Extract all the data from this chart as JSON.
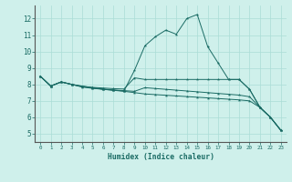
{
  "xlabel": "Humidex (Indice chaleur)",
  "xlim": [
    -0.5,
    23.5
  ],
  "ylim": [
    4.5,
    12.8
  ],
  "yticks": [
    5,
    6,
    7,
    8,
    9,
    10,
    11,
    12
  ],
  "xticks": [
    0,
    1,
    2,
    3,
    4,
    5,
    6,
    7,
    8,
    9,
    10,
    11,
    12,
    13,
    14,
    15,
    16,
    17,
    18,
    19,
    20,
    21,
    22,
    23
  ],
  "bg_color": "#cff0eb",
  "grid_color": "#aaddd6",
  "line_color": "#1a6b64",
  "lines": [
    {
      "x": [
        0,
        1,
        2,
        3,
        4,
        5,
        6,
        7,
        8,
        9,
        10,
        11,
        12,
        13,
        14,
        15,
        16,
        17,
        18,
        19,
        20,
        21,
        22,
        23
      ],
      "y": [
        8.5,
        7.9,
        8.15,
        8.0,
        7.9,
        7.8,
        7.7,
        7.65,
        7.6,
        8.85,
        10.35,
        10.9,
        11.3,
        11.05,
        12.0,
        12.25,
        10.3,
        9.3,
        8.3,
        8.3,
        7.7,
        6.6,
        6.0,
        5.2
      ]
    },
    {
      "x": [
        0,
        1,
        2,
        3,
        4,
        5,
        6,
        7,
        8,
        9,
        10,
        11,
        12,
        13,
        14,
        15,
        16,
        17,
        18,
        19,
        20,
        21,
        22,
        23
      ],
      "y": [
        8.5,
        7.9,
        8.15,
        8.0,
        7.88,
        7.82,
        7.78,
        7.74,
        7.72,
        8.4,
        8.3,
        8.3,
        8.3,
        8.3,
        8.3,
        8.3,
        8.3,
        8.3,
        8.3,
        8.3,
        7.7,
        6.6,
        6.0,
        5.2
      ]
    },
    {
      "x": [
        0,
        1,
        2,
        3,
        4,
        5,
        6,
        7,
        8,
        9,
        10,
        11,
        12,
        13,
        14,
        15,
        16,
        17,
        18,
        19,
        20,
        21,
        22,
        23
      ],
      "y": [
        8.5,
        7.9,
        8.15,
        8.0,
        7.86,
        7.78,
        7.72,
        7.66,
        7.62,
        7.58,
        7.8,
        7.75,
        7.7,
        7.65,
        7.6,
        7.55,
        7.5,
        7.45,
        7.4,
        7.35,
        7.25,
        6.6,
        6.0,
        5.2
      ]
    },
    {
      "x": [
        0,
        1,
        2,
        3,
        4,
        5,
        6,
        7,
        8,
        9,
        10,
        11,
        12,
        13,
        14,
        15,
        16,
        17,
        18,
        19,
        20,
        21,
        22,
        23
      ],
      "y": [
        8.5,
        7.9,
        8.15,
        8.0,
        7.84,
        7.76,
        7.7,
        7.64,
        7.58,
        7.5,
        7.42,
        7.38,
        7.34,
        7.3,
        7.26,
        7.22,
        7.18,
        7.14,
        7.1,
        7.06,
        7.0,
        6.6,
        6.0,
        5.2
      ]
    }
  ]
}
